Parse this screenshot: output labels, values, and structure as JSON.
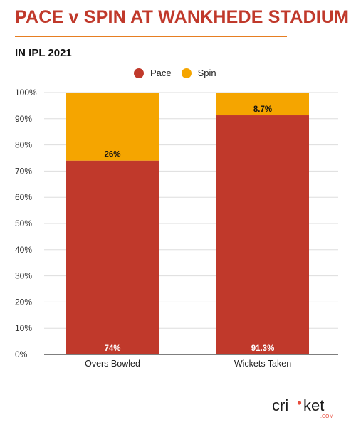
{
  "header": {
    "title": "PACE v SPIN AT WANKHEDE STADIUM",
    "subtitle": "IN IPL 2021"
  },
  "colors": {
    "pace": "#c0392b",
    "spin": "#f5a500",
    "accent_rule": "#e67e22",
    "grid": "#dddddd"
  },
  "chart_data": {
    "type": "bar",
    "stacked": true,
    "categories": [
      "Overs Bowled",
      "Wickets Taken"
    ],
    "series": [
      {
        "name": "Pace",
        "values": [
          74,
          91.3
        ],
        "labels": [
          "74%",
          "91.3%"
        ]
      },
      {
        "name": "Spin",
        "values": [
          26,
          8.7
        ],
        "labels": [
          "26%",
          "8.7%"
        ]
      }
    ],
    "ylim": [
      0,
      100
    ],
    "yticks": [
      0,
      10,
      20,
      30,
      40,
      50,
      60,
      70,
      80,
      90,
      100
    ],
    "ytick_labels": [
      "0%",
      "10%",
      "20%",
      "30%",
      "40%",
      "50%",
      "60%",
      "70%",
      "80%",
      "90%",
      "100%"
    ],
    "grid": true,
    "legend": "top-center"
  },
  "logo": {
    "text_prefix": "cri",
    "text_suffix": "ket",
    "tagline": ".COM"
  }
}
